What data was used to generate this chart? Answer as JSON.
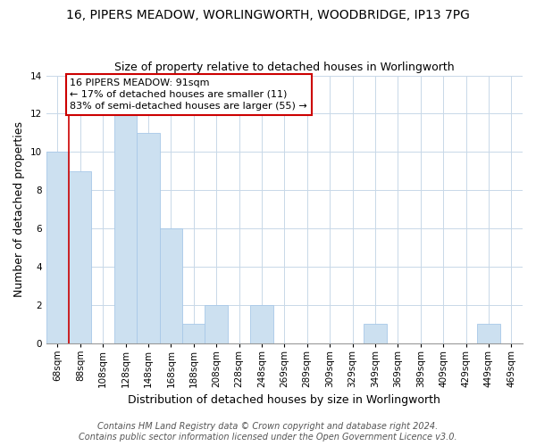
{
  "title": "16, PIPERS MEADOW, WORLINGWORTH, WOODBRIDGE, IP13 7PG",
  "subtitle": "Size of property relative to detached houses in Worlingworth",
  "xlabel": "Distribution of detached houses by size in Worlingworth",
  "ylabel": "Number of detached properties",
  "bar_labels": [
    "68sqm",
    "88sqm",
    "108sqm",
    "128sqm",
    "148sqm",
    "168sqm",
    "188sqm",
    "208sqm",
    "228sqm",
    "248sqm",
    "269sqm",
    "289sqm",
    "309sqm",
    "329sqm",
    "349sqm",
    "369sqm",
    "389sqm",
    "409sqm",
    "429sqm",
    "449sqm",
    "469sqm"
  ],
  "bar_values": [
    10,
    9,
    0,
    12,
    11,
    6,
    1,
    2,
    0,
    2,
    0,
    0,
    0,
    0,
    1,
    0,
    0,
    0,
    0,
    1,
    0
  ],
  "bar_color": "#cce0f0",
  "bar_edge_color": "#a8c8e8",
  "highlight_color": "#cc0000",
  "highlight_idx": 1,
  "annotation_title": "16 PIPERS MEADOW: 91sqm",
  "annotation_line1": "← 17% of detached houses are smaller (11)",
  "annotation_line2": "83% of semi-detached houses are larger (55) →",
  "annotation_box_color": "#ffffff",
  "annotation_box_edge": "#cc0000",
  "ylim": [
    0,
    14
  ],
  "yticks": [
    0,
    2,
    4,
    6,
    8,
    10,
    12,
    14
  ],
  "footer1": "Contains HM Land Registry data © Crown copyright and database right 2024.",
  "footer2": "Contains public sector information licensed under the Open Government Licence v3.0.",
  "grid_color": "#c8d8e8",
  "title_fontsize": 10,
  "subtitle_fontsize": 9,
  "axis_label_fontsize": 9,
  "tick_fontsize": 7.5,
  "annotation_fontsize": 8,
  "footer_fontsize": 7
}
